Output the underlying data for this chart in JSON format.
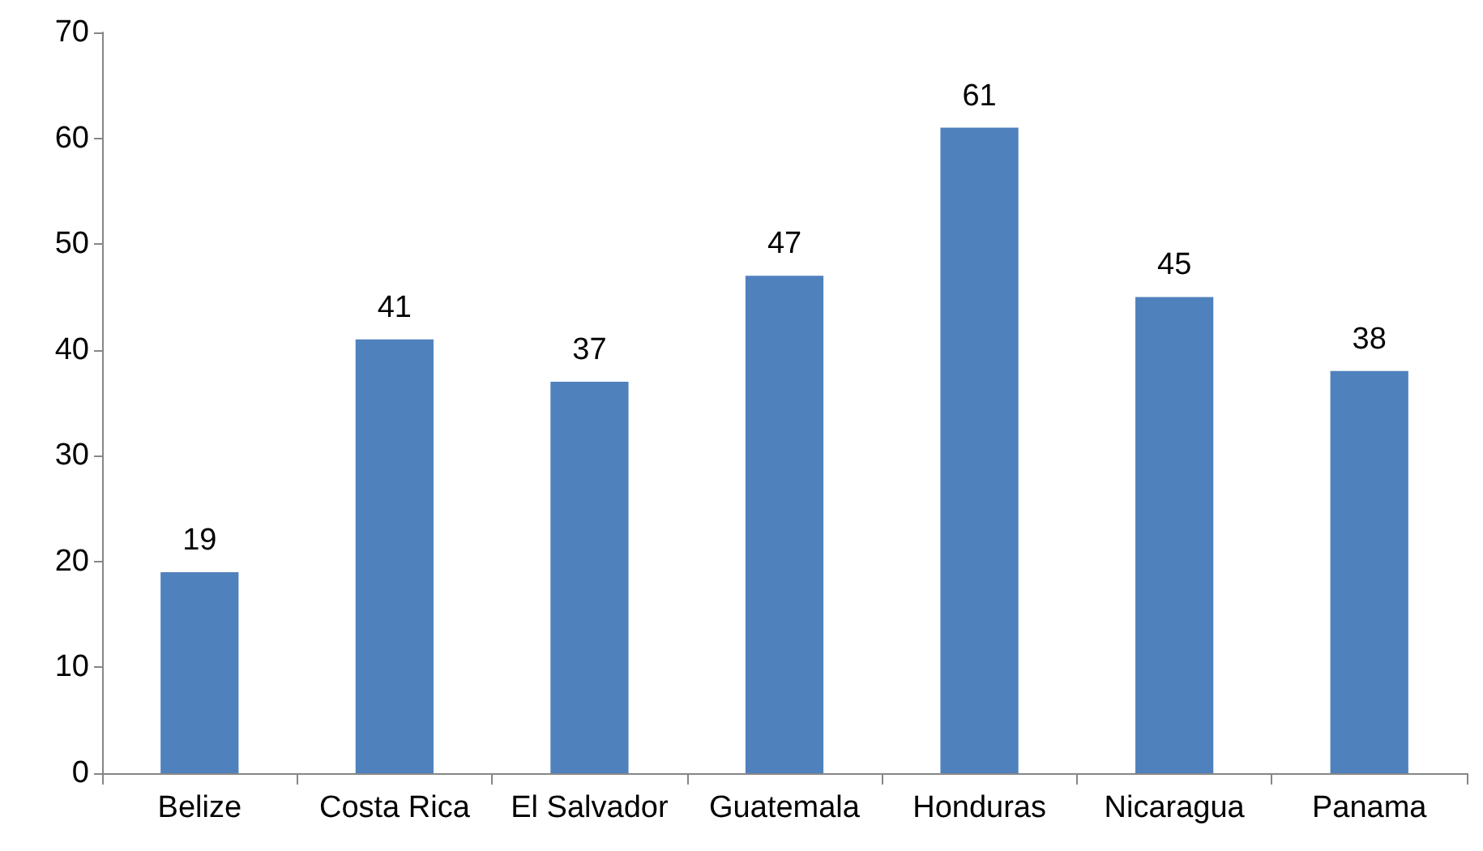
{
  "chart_data": {
    "type": "bar",
    "categories": [
      "Belize",
      "Costa Rica",
      "El Salvador",
      "Guatemala",
      "Honduras",
      "Nicaragua",
      "Panama"
    ],
    "values": [
      19,
      41,
      37,
      47,
      61,
      45,
      38
    ],
    "color": "#4f81bd",
    "ylim": [
      0,
      70
    ],
    "yticks": [
      0,
      10,
      20,
      30,
      40,
      50,
      60,
      70
    ],
    "grid": false,
    "data_labels": true
  }
}
